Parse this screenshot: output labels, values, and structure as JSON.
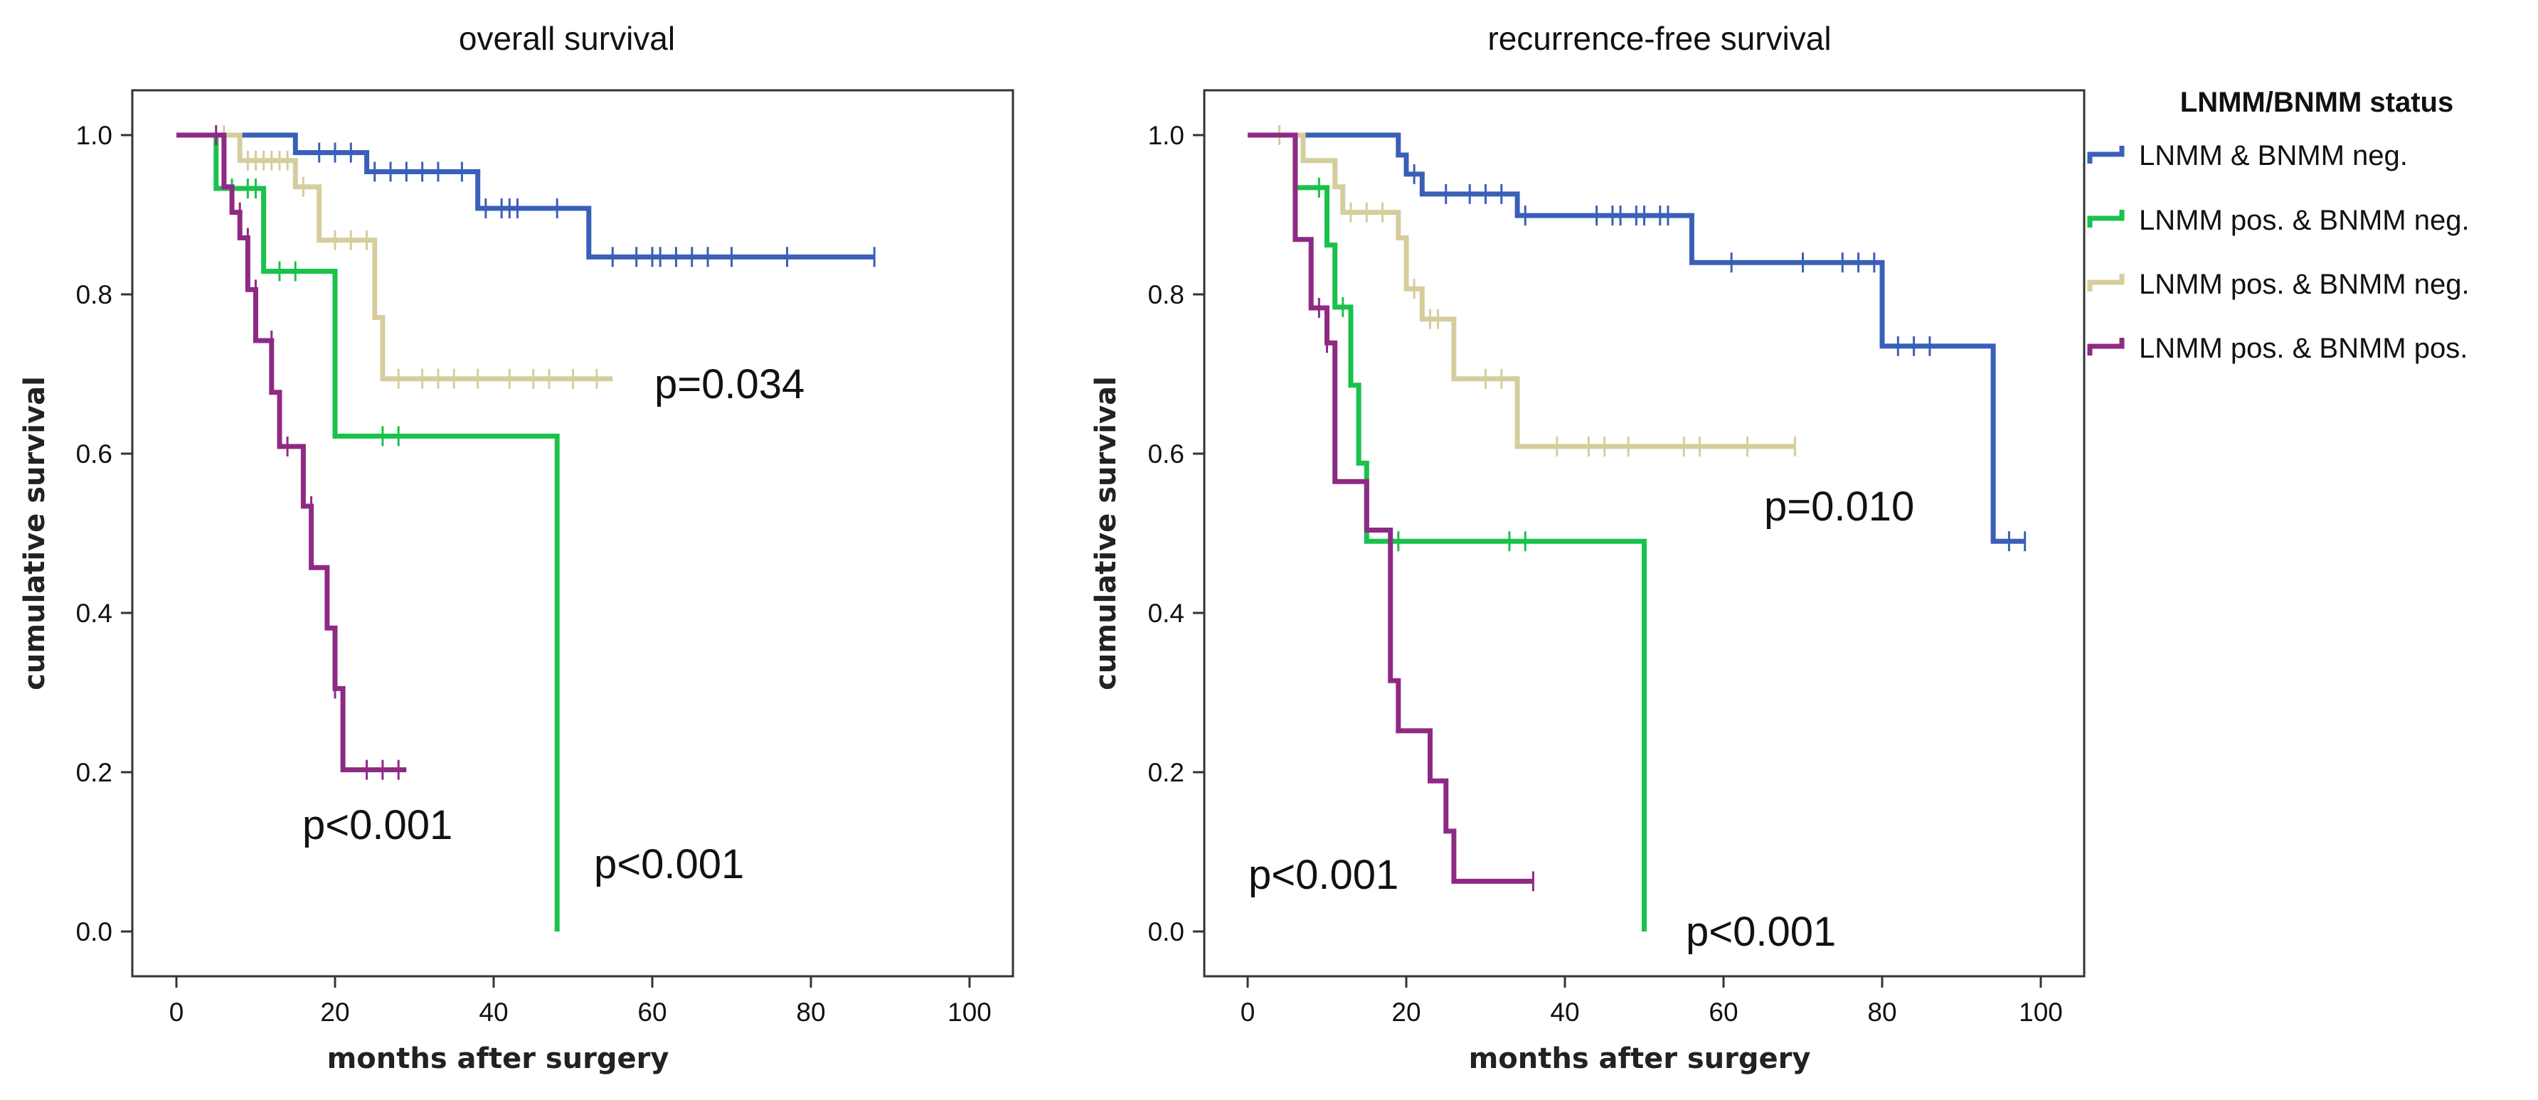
{
  "chart_data": [
    {
      "type": "line",
      "step": true,
      "title": "overall survival",
      "xlabel": "months after surgery",
      "ylabel": "cumulative survival",
      "xlim": [
        0,
        100
      ],
      "ylim": [
        0,
        1
      ],
      "x_ticks": [
        0,
        20,
        40,
        60,
        80,
        100
      ],
      "y_ticks": [
        0.0,
        0.2,
        0.4,
        0.6,
        0.8,
        1.0
      ],
      "x_tick_labels": [
        "0",
        "20",
        "40",
        "60",
        "80",
        "100"
      ],
      "y_tick_labels": [
        "0.0",
        "0.2",
        "0.4",
        "0.6",
        "0.8",
        "1.0"
      ],
      "series": [
        {
          "name": "LNMM & BNMM neg.",
          "color": "#3a5fb8",
          "points": [
            [
              0,
              1.0
            ],
            [
              15,
              1.0
            ],
            [
              15,
              0.978
            ],
            [
              24,
              0.978
            ],
            [
              24,
              0.954
            ],
            [
              38,
              0.954
            ],
            [
              38,
              0.908
            ],
            [
              52,
              0.908
            ],
            [
              52,
              0.847
            ],
            [
              88,
              0.847
            ]
          ],
          "censored": [
            [
              18,
              0.978
            ],
            [
              20,
              0.978
            ],
            [
              22,
              0.978
            ],
            [
              25,
              0.954
            ],
            [
              27,
              0.954
            ],
            [
              29,
              0.954
            ],
            [
              31,
              0.954
            ],
            [
              33,
              0.954
            ],
            [
              36,
              0.954
            ],
            [
              39,
              0.908
            ],
            [
              41,
              0.908
            ],
            [
              42,
              0.908
            ],
            [
              43,
              0.908
            ],
            [
              48,
              0.908
            ],
            [
              55,
              0.847
            ],
            [
              58,
              0.847
            ],
            [
              60,
              0.847
            ],
            [
              61,
              0.847
            ],
            [
              63,
              0.847
            ],
            [
              65,
              0.847
            ],
            [
              67,
              0.847
            ],
            [
              70,
              0.847
            ],
            [
              77,
              0.847
            ],
            [
              88,
              0.847
            ]
          ]
        },
        {
          "name": "LNMM pos. & BNMM neg.",
          "color": "#19c24a",
          "points": [
            [
              0,
              1.0
            ],
            [
              5,
              1.0
            ],
            [
              5,
              0.933
            ],
            [
              11,
              0.933
            ],
            [
              11,
              0.829
            ],
            [
              20,
              0.829
            ],
            [
              20,
              0.622
            ],
            [
              48,
              0.622
            ],
            [
              48,
              0.0
            ]
          ],
          "censored": [
            [
              7,
              0.933
            ],
            [
              9,
              0.933
            ],
            [
              10,
              0.933
            ],
            [
              13,
              0.829
            ],
            [
              15,
              0.829
            ],
            [
              26,
              0.622
            ],
            [
              28,
              0.622
            ]
          ]
        },
        {
          "name": "LNMM pos. & BNMM neg.",
          "color": "#d6cd9d",
          "points": [
            [
              0,
              1.0
            ],
            [
              8,
              1.0
            ],
            [
              8,
              0.968
            ],
            [
              15,
              0.968
            ],
            [
              15,
              0.935
            ],
            [
              18,
              0.935
            ],
            [
              18,
              0.868
            ],
            [
              25,
              0.868
            ],
            [
              25,
              0.771
            ],
            [
              26,
              0.771
            ],
            [
              26,
              0.694
            ],
            [
              55,
              0.694
            ]
          ],
          "censored": [
            [
              6,
              1.0
            ],
            [
              9,
              0.968
            ],
            [
              10,
              0.968
            ],
            [
              11,
              0.968
            ],
            [
              12,
              0.968
            ],
            [
              13,
              0.968
            ],
            [
              14,
              0.968
            ],
            [
              16,
              0.935
            ],
            [
              20,
              0.868
            ],
            [
              22,
              0.868
            ],
            [
              24,
              0.868
            ],
            [
              28,
              0.694
            ],
            [
              31,
              0.694
            ],
            [
              33,
              0.694
            ],
            [
              35,
              0.694
            ],
            [
              38,
              0.694
            ],
            [
              42,
              0.694
            ],
            [
              45,
              0.694
            ],
            [
              47,
              0.694
            ],
            [
              50,
              0.694
            ],
            [
              53,
              0.694
            ]
          ]
        },
        {
          "name": "LNMM pos. & BNMM pos.",
          "color": "#8e2a84",
          "points": [
            [
              0,
              1.0
            ],
            [
              6,
              1.0
            ],
            [
              6,
              0.935
            ],
            [
              7,
              0.935
            ],
            [
              7,
              0.903
            ],
            [
              8,
              0.903
            ],
            [
              8,
              0.871
            ],
            [
              9,
              0.871
            ],
            [
              9,
              0.806
            ],
            [
              10,
              0.806
            ],
            [
              10,
              0.742
            ],
            [
              12,
              0.742
            ],
            [
              12,
              0.677
            ],
            [
              13,
              0.677
            ],
            [
              13,
              0.609
            ],
            [
              16,
              0.609
            ],
            [
              16,
              0.534
            ],
            [
              17,
              0.534
            ],
            [
              17,
              0.457
            ],
            [
              19,
              0.457
            ],
            [
              19,
              0.381
            ],
            [
              20,
              0.381
            ],
            [
              20,
              0.305
            ],
            [
              21,
              0.305
            ],
            [
              21,
              0.203
            ],
            [
              29,
              0.203
            ]
          ],
          "censored": [
            [
              5,
              1.0
            ],
            [
              8,
              0.903
            ],
            [
              9,
              0.871
            ],
            [
              10,
              0.806
            ],
            [
              12,
              0.742
            ],
            [
              14,
              0.609
            ],
            [
              17,
              0.534
            ],
            [
              20,
              0.305
            ],
            [
              24,
              0.203
            ],
            [
              26,
              0.203
            ],
            [
              28,
              0.203
            ]
          ]
        }
      ],
      "annotations": [
        "p=0.034",
        "p<0.001",
        "p<0.001"
      ]
    },
    {
      "type": "line",
      "step": true,
      "title": "recurrence-free survival",
      "xlabel": "months after surgery",
      "ylabel": "cumulative survival",
      "xlim": [
        0,
        100
      ],
      "ylim": [
        0,
        1
      ],
      "x_ticks": [
        0,
        20,
        40,
        60,
        80,
        100
      ],
      "y_ticks": [
        0.0,
        0.2,
        0.4,
        0.6,
        0.8,
        1.0
      ],
      "x_tick_labels": [
        "0",
        "20",
        "40",
        "60",
        "80",
        "100"
      ],
      "y_tick_labels": [
        "0.0",
        "0.2",
        "0.4",
        "0.6",
        "0.8",
        "1.0"
      ],
      "series": [
        {
          "name": "LNMM & BNMM neg.",
          "color": "#3a5fb8",
          "points": [
            [
              0,
              1.0
            ],
            [
              19,
              1.0
            ],
            [
              19,
              0.975
            ],
            [
              20,
              0.975
            ],
            [
              20,
              0.951
            ],
            [
              22,
              0.951
            ],
            [
              22,
              0.926
            ],
            [
              34,
              0.926
            ],
            [
              34,
              0.899
            ],
            [
              56,
              0.899
            ],
            [
              56,
              0.84
            ],
            [
              80,
              0.84
            ],
            [
              80,
              0.735
            ],
            [
              94,
              0.735
            ],
            [
              94,
              0.49
            ],
            [
              98,
              0.49
            ]
          ],
          "censored": [
            [
              21,
              0.951
            ],
            [
              25,
              0.926
            ],
            [
              28,
              0.926
            ],
            [
              30,
              0.926
            ],
            [
              32,
              0.926
            ],
            [
              35,
              0.899
            ],
            [
              44,
              0.899
            ],
            [
              46,
              0.899
            ],
            [
              47,
              0.899
            ],
            [
              49,
              0.899
            ],
            [
              50,
              0.899
            ],
            [
              52,
              0.899
            ],
            [
              53,
              0.899
            ],
            [
              61,
              0.84
            ],
            [
              70,
              0.84
            ],
            [
              75,
              0.84
            ],
            [
              77,
              0.84
            ],
            [
              79,
              0.84
            ],
            [
              82,
              0.735
            ],
            [
              84,
              0.735
            ],
            [
              86,
              0.735
            ],
            [
              96,
              0.49
            ],
            [
              98,
              0.49
            ]
          ]
        },
        {
          "name": "LNMM pos. & BNMM neg.",
          "color": "#19c24a",
          "points": [
            [
              0,
              1.0
            ],
            [
              6,
              1.0
            ],
            [
              6,
              0.934
            ],
            [
              10,
              0.934
            ],
            [
              10,
              0.862
            ],
            [
              11,
              0.862
            ],
            [
              11,
              0.784
            ],
            [
              13,
              0.784
            ],
            [
              13,
              0.686
            ],
            [
              14,
              0.686
            ],
            [
              14,
              0.588
            ],
            [
              15,
              0.588
            ],
            [
              15,
              0.49
            ],
            [
              50,
              0.49
            ],
            [
              50,
              0.0
            ]
          ],
          "censored": [
            [
              9,
              0.934
            ],
            [
              12,
              0.784
            ],
            [
              19,
              0.49
            ],
            [
              33,
              0.49
            ],
            [
              35,
              0.49
            ]
          ]
        },
        {
          "name": "LNMM pos. & BNMM neg.",
          "color": "#d6cd9d",
          "points": [
            [
              0,
              1.0
            ],
            [
              7,
              1.0
            ],
            [
              7,
              0.968
            ],
            [
              11,
              0.968
            ],
            [
              11,
              0.935
            ],
            [
              12,
              0.935
            ],
            [
              12,
              0.903
            ],
            [
              19,
              0.903
            ],
            [
              19,
              0.871
            ],
            [
              20,
              0.871
            ],
            [
              20,
              0.807
            ],
            [
              22,
              0.807
            ],
            [
              22,
              0.769
            ],
            [
              26,
              0.769
            ],
            [
              26,
              0.694
            ],
            [
              34,
              0.694
            ],
            [
              34,
              0.609
            ],
            [
              69,
              0.609
            ]
          ],
          "censored": [
            [
              4,
              1.0
            ],
            [
              13,
              0.903
            ],
            [
              15,
              0.903
            ],
            [
              17,
              0.903
            ],
            [
              21,
              0.807
            ],
            [
              23,
              0.769
            ],
            [
              24,
              0.769
            ],
            [
              30,
              0.694
            ],
            [
              32,
              0.694
            ],
            [
              39,
              0.609
            ],
            [
              43,
              0.609
            ],
            [
              45,
              0.609
            ],
            [
              48,
              0.609
            ],
            [
              55,
              0.609
            ],
            [
              57,
              0.609
            ],
            [
              63,
              0.609
            ],
            [
              69,
              0.609
            ]
          ]
        },
        {
          "name": "LNMM pos. & BNMM pos.",
          "color": "#8e2a84",
          "points": [
            [
              0,
              1.0
            ],
            [
              6,
              1.0
            ],
            [
              6,
              0.869
            ],
            [
              8,
              0.869
            ],
            [
              8,
              0.783
            ],
            [
              10,
              0.783
            ],
            [
              10,
              0.739
            ],
            [
              11,
              0.739
            ],
            [
              11,
              0.565
            ],
            [
              15,
              0.565
            ],
            [
              15,
              0.504
            ],
            [
              18,
              0.504
            ],
            [
              18,
              0.315
            ],
            [
              19,
              0.315
            ],
            [
              19,
              0.252
            ],
            [
              23,
              0.252
            ],
            [
              23,
              0.189
            ],
            [
              25,
              0.189
            ],
            [
              25,
              0.126
            ],
            [
              26,
              0.126
            ],
            [
              26,
              0.063
            ],
            [
              36,
              0.063
            ]
          ],
          "censored": [
            [
              9,
              0.783
            ],
            [
              10,
              0.739
            ],
            [
              36,
              0.063
            ]
          ]
        }
      ],
      "annotations": [
        "p=0.010",
        "p<0.001",
        "p<0.001"
      ]
    }
  ],
  "legend": {
    "title": "LNMM/BNMM status",
    "items": [
      {
        "label": "LNMM & BNMM neg.",
        "color": "#3a5fb8"
      },
      {
        "label": "LNMM pos. & BNMM neg.",
        "color": "#19c24a"
      },
      {
        "label": "LNMM pos. & BNMM neg.",
        "color": "#d6cd9d"
      },
      {
        "label": "LNMM pos. & BNMM pos.",
        "color": "#8e2a84"
      }
    ]
  }
}
